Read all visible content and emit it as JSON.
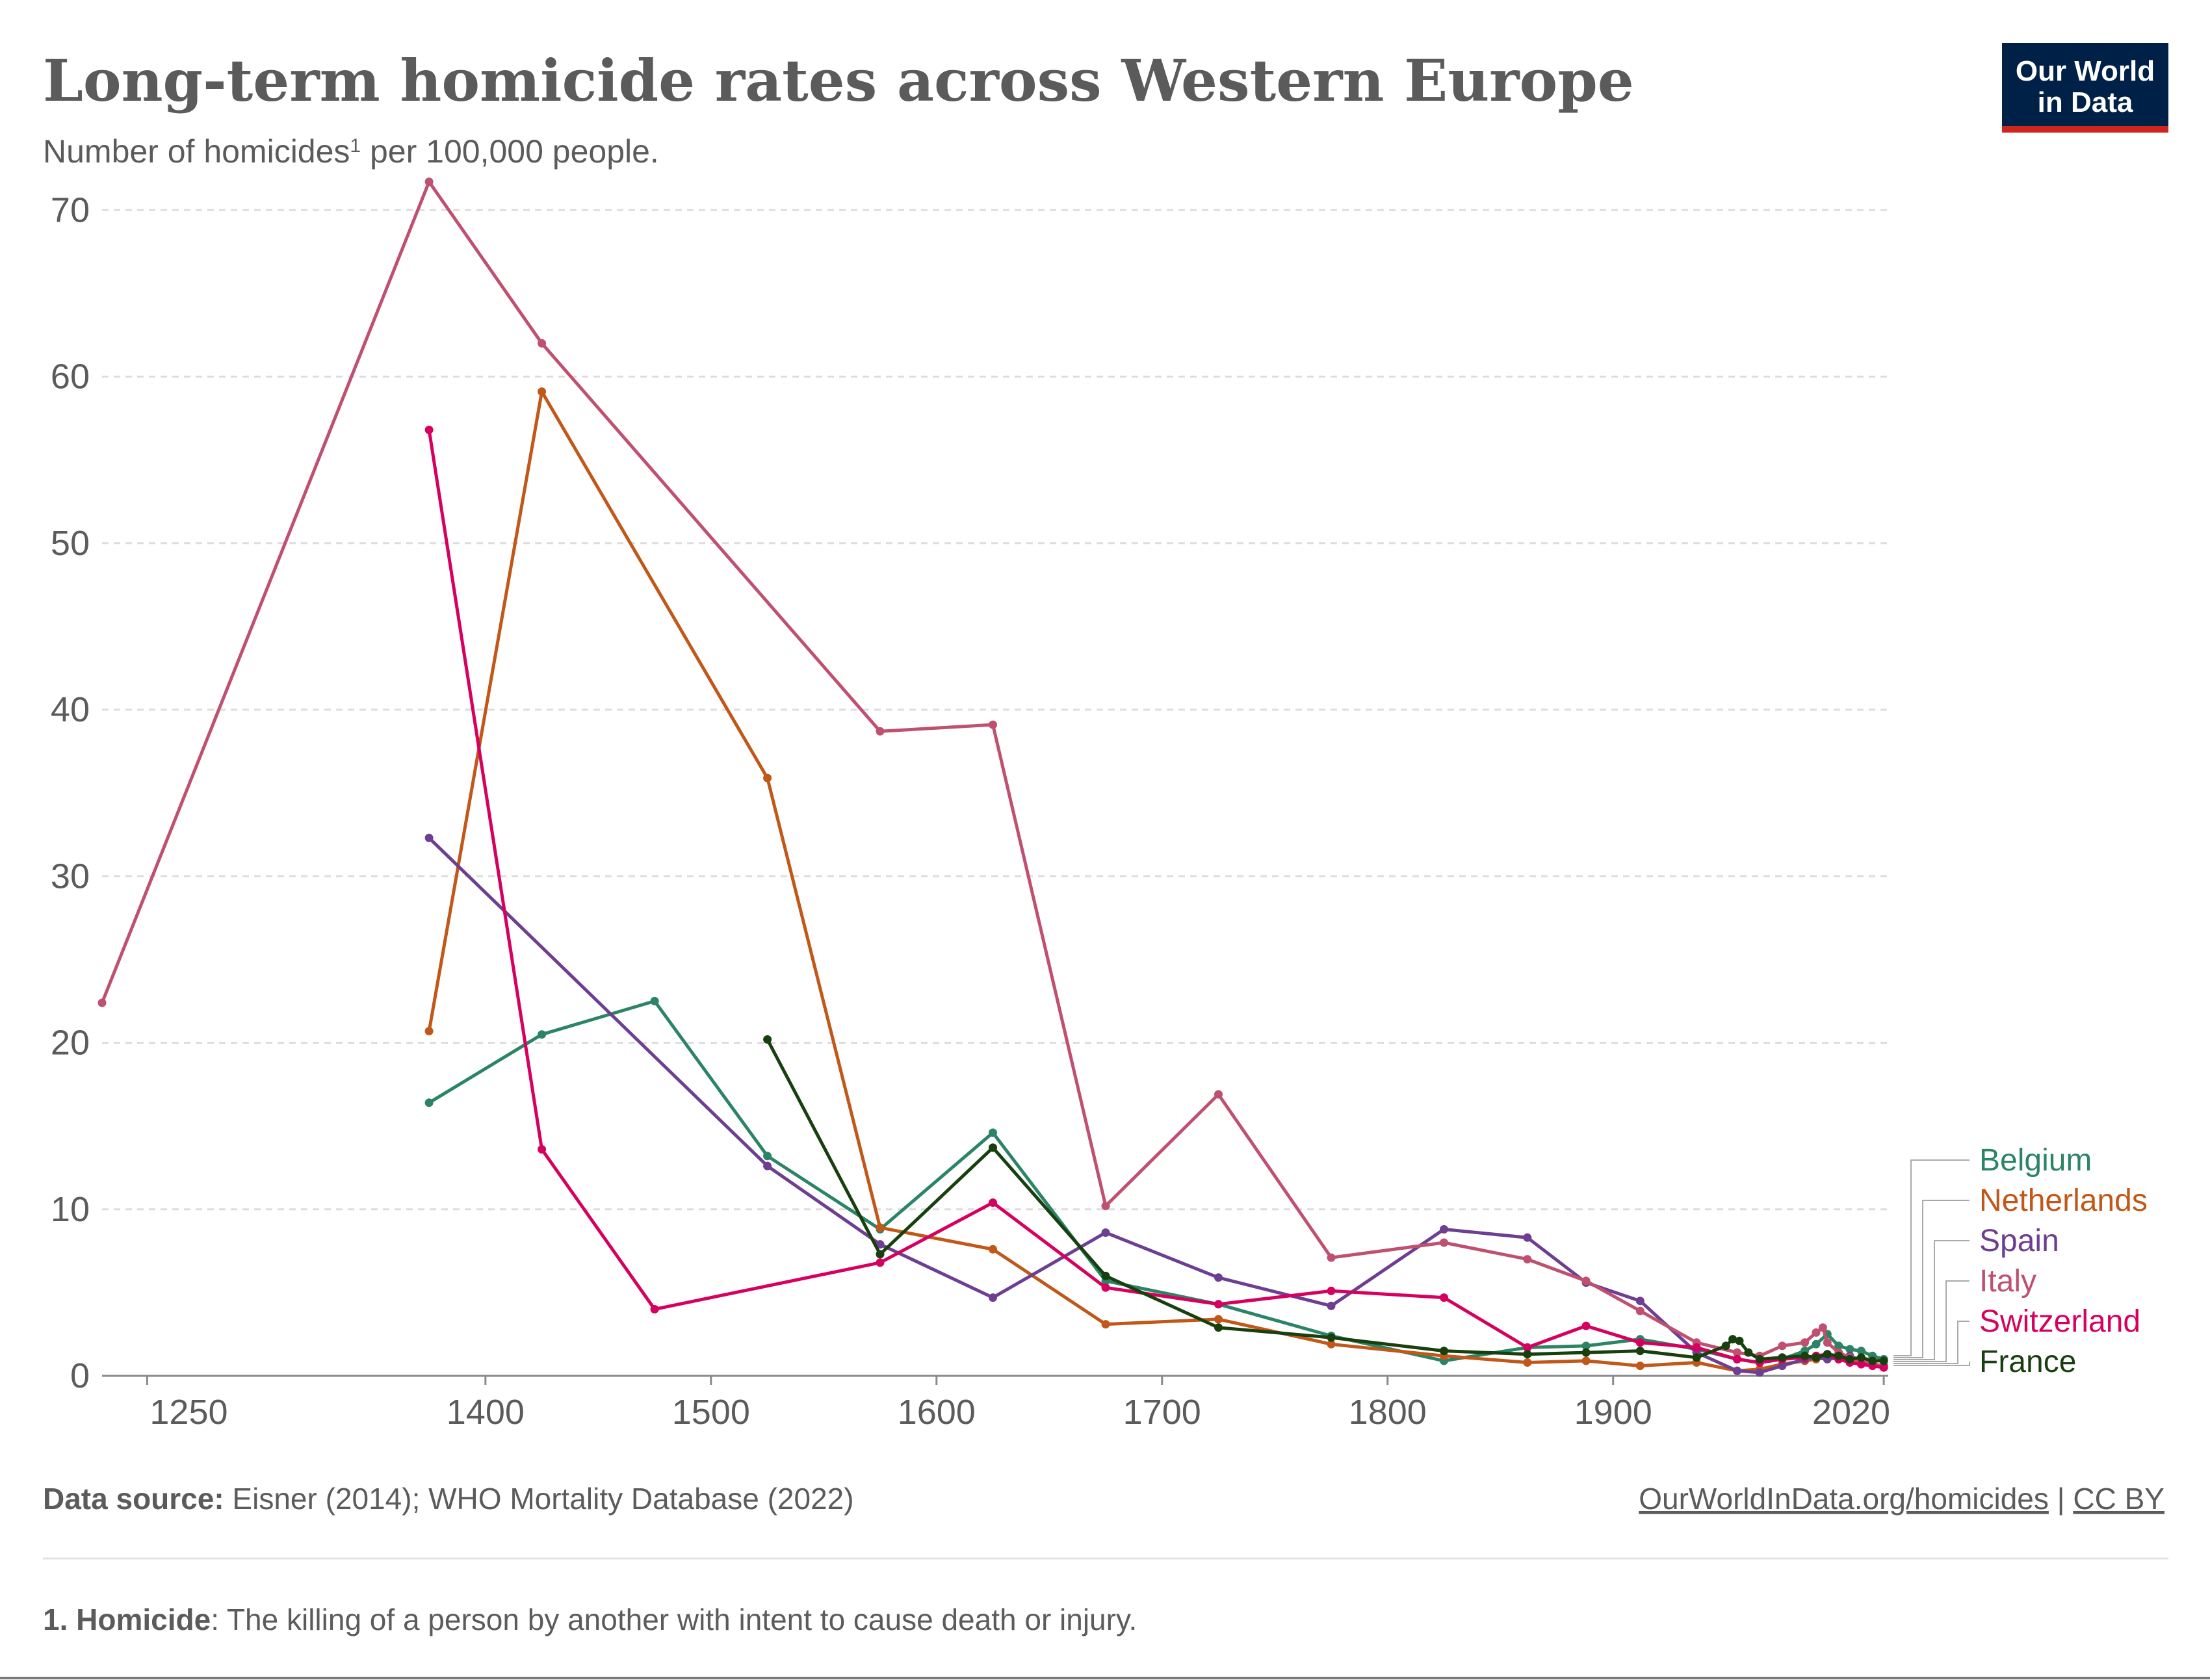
{
  "header": {
    "title": "Long-term homicide rates across Western Europe",
    "subtitle_main": "Number of homicides",
    "subtitle_sup": "1",
    "subtitle_rest": " per 100,000 people."
  },
  "logo": {
    "line1": "Our World",
    "line2": "in Data",
    "bg_color": "#002147",
    "accent_color": "#ce261e"
  },
  "footer": {
    "source_label": "Data source:",
    "source_text": " Eisner (2014); WHO Mortality Database (2022)",
    "url": "OurWorldInData.org/homicides",
    "separator": " | ",
    "license": "CC BY",
    "note_label": "1. Homicide",
    "note_text": ": The killing of a person by another with intent to cause death or injury."
  },
  "chart_data": {
    "type": "line",
    "xlim": [
      1230,
      2022
    ],
    "ylim": [
      0,
      72
    ],
    "x_ticks": [
      1250,
      1400,
      1500,
      1600,
      1700,
      1800,
      1900,
      2020
    ],
    "y_ticks": [
      0,
      10,
      20,
      30,
      40,
      50,
      60,
      70
    ],
    "grid": "horizontal dashed",
    "legend_placement": "right",
    "series": [
      {
        "name": "Belgium",
        "color": "#2b8465",
        "points": [
          [
            1375,
            16.4
          ],
          [
            1425,
            20.5
          ],
          [
            1475,
            22.5
          ],
          [
            1525,
            13.2
          ],
          [
            1575,
            8.8
          ],
          [
            1625,
            14.6
          ],
          [
            1675,
            5.7
          ],
          [
            1725,
            4.3
          ],
          [
            1775,
            2.4
          ],
          [
            1825,
            0.9
          ],
          [
            1862,
            1.7
          ],
          [
            1888,
            1.8
          ],
          [
            1912,
            2.2
          ],
          [
            1937,
            1.6
          ],
          [
            1955,
            1.0
          ],
          [
            1965,
            0.8
          ],
          [
            1975,
            1.0
          ],
          [
            1985,
            1.5
          ],
          [
            1990,
            1.9
          ],
          [
            1995,
            2.5
          ],
          [
            2000,
            1.8
          ],
          [
            2005,
            1.6
          ],
          [
            2010,
            1.5
          ],
          [
            2015,
            1.2
          ],
          [
            2020,
            1.0
          ]
        ]
      },
      {
        "name": "Netherlands",
        "color": "#c15718",
        "points": [
          [
            1375,
            20.7
          ],
          [
            1425,
            59.1
          ],
          [
            1525,
            35.9
          ],
          [
            1575,
            8.9
          ],
          [
            1625,
            7.6
          ],
          [
            1675,
            3.1
          ],
          [
            1725,
            3.4
          ],
          [
            1775,
            1.9
          ],
          [
            1825,
            1.2
          ],
          [
            1862,
            0.8
          ],
          [
            1888,
            0.9
          ],
          [
            1912,
            0.6
          ],
          [
            1937,
            0.8
          ],
          [
            1955,
            0.3
          ],
          [
            1965,
            0.4
          ],
          [
            1975,
            0.7
          ],
          [
            1985,
            0.9
          ],
          [
            1990,
            1.0
          ],
          [
            1995,
            1.1
          ],
          [
            2000,
            1.0
          ],
          [
            2005,
            1.0
          ],
          [
            2010,
            0.9
          ],
          [
            2015,
            0.7
          ],
          [
            2020,
            0.6
          ]
        ]
      },
      {
        "name": "Spain",
        "color": "#6d3e91",
        "points": [
          [
            1375,
            32.3
          ],
          [
            1525,
            12.6
          ],
          [
            1575,
            7.9
          ],
          [
            1625,
            4.7
          ],
          [
            1675,
            8.6
          ],
          [
            1725,
            5.9
          ],
          [
            1775,
            4.2
          ],
          [
            1825,
            8.8
          ],
          [
            1862,
            8.3
          ],
          [
            1888,
            5.6
          ],
          [
            1912,
            4.5
          ],
          [
            1937,
            1.4
          ],
          [
            1955,
            0.3
          ],
          [
            1965,
            0.2
          ],
          [
            1975,
            0.6
          ],
          [
            1985,
            1.0
          ],
          [
            1990,
            1.1
          ],
          [
            1995,
            1.0
          ],
          [
            2000,
            1.1
          ],
          [
            2005,
            1.2
          ],
          [
            2010,
            0.9
          ],
          [
            2015,
            0.7
          ],
          [
            2020,
            0.6
          ]
        ]
      },
      {
        "name": "Italy",
        "color": "#c05070",
        "points": [
          [
            1230,
            22.4
          ],
          [
            1375,
            71.7
          ],
          [
            1425,
            62.0
          ],
          [
            1575,
            38.7
          ],
          [
            1625,
            39.1
          ],
          [
            1675,
            10.2
          ],
          [
            1725,
            16.9
          ],
          [
            1775,
            7.1
          ],
          [
            1825,
            8.0
          ],
          [
            1862,
            7.0
          ],
          [
            1888,
            5.7
          ],
          [
            1912,
            3.9
          ],
          [
            1937,
            2.0
          ],
          [
            1955,
            1.4
          ],
          [
            1965,
            1.2
          ],
          [
            1975,
            1.8
          ],
          [
            1985,
            2.0
          ],
          [
            1990,
            2.6
          ],
          [
            1993,
            2.9
          ],
          [
            1995,
            2.0
          ],
          [
            2000,
            1.4
          ],
          [
            2005,
            1.1
          ],
          [
            2010,
            0.9
          ],
          [
            2015,
            0.8
          ],
          [
            2020,
            0.5
          ]
        ]
      },
      {
        "name": "Switzerland",
        "color": "#d6005e",
        "points": [
          [
            1375,
            56.8
          ],
          [
            1425,
            13.6
          ],
          [
            1475,
            4.0
          ],
          [
            1575,
            6.8
          ],
          [
            1625,
            10.4
          ],
          [
            1675,
            5.3
          ],
          [
            1725,
            4.3
          ],
          [
            1775,
            5.1
          ],
          [
            1825,
            4.7
          ],
          [
            1862,
            1.7
          ],
          [
            1888,
            3.0
          ],
          [
            1912,
            2.0
          ],
          [
            1937,
            1.7
          ],
          [
            1955,
            1.0
          ],
          [
            1965,
            0.8
          ],
          [
            1975,
            1.0
          ],
          [
            1985,
            1.1
          ],
          [
            1990,
            1.2
          ],
          [
            1995,
            1.3
          ],
          [
            2000,
            1.0
          ],
          [
            2005,
            0.8
          ],
          [
            2010,
            0.7
          ],
          [
            2015,
            0.6
          ],
          [
            2020,
            0.5
          ]
        ]
      },
      {
        "name": "France",
        "color": "#183f0e",
        "points": [
          [
            1525,
            20.2
          ],
          [
            1575,
            7.3
          ],
          [
            1625,
            13.7
          ],
          [
            1675,
            6.0
          ],
          [
            1725,
            2.9
          ],
          [
            1775,
            2.3
          ],
          [
            1825,
            1.5
          ],
          [
            1862,
            1.3
          ],
          [
            1888,
            1.4
          ],
          [
            1912,
            1.5
          ],
          [
            1937,
            1.1
          ],
          [
            1950,
            1.8
          ],
          [
            1953,
            2.2
          ],
          [
            1956,
            2.1
          ],
          [
            1960,
            1.4
          ],
          [
            1965,
            1.0
          ],
          [
            1975,
            1.1
          ],
          [
            1985,
            1.2
          ],
          [
            1990,
            1.1
          ],
          [
            1995,
            1.3
          ],
          [
            2000,
            1.2
          ],
          [
            2005,
            1.0
          ],
          [
            2010,
            1.1
          ],
          [
            2015,
            0.9
          ],
          [
            2020,
            0.9
          ]
        ]
      }
    ]
  }
}
